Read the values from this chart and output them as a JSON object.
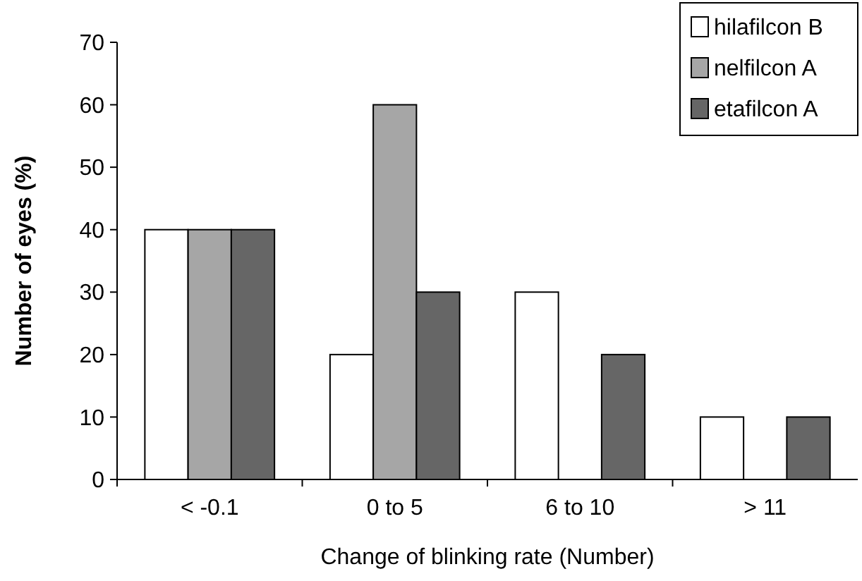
{
  "chart_data": {
    "type": "bar",
    "xlabel": "Change of blinking rate (Number)",
    "ylabel": "Number of eyes (%)",
    "categories": [
      "< -0.1",
      "0 to 5",
      "6 to 10",
      "> 11"
    ],
    "series": [
      {
        "name": "hilafilcon B",
        "color": "#ffffff",
        "values": [
          40,
          20,
          30,
          10
        ]
      },
      {
        "name": "nelfilcon A",
        "color": "#a6a6a6",
        "values": [
          40,
          60,
          0,
          0
        ]
      },
      {
        "name": "etafilcon A",
        "color": "#666666",
        "values": [
          40,
          30,
          20,
          10
        ]
      }
    ],
    "ylim": [
      0,
      70
    ],
    "yticks": [
      0,
      10,
      20,
      30,
      40,
      50,
      60,
      70
    ],
    "grid": false,
    "legend": "top right"
  }
}
